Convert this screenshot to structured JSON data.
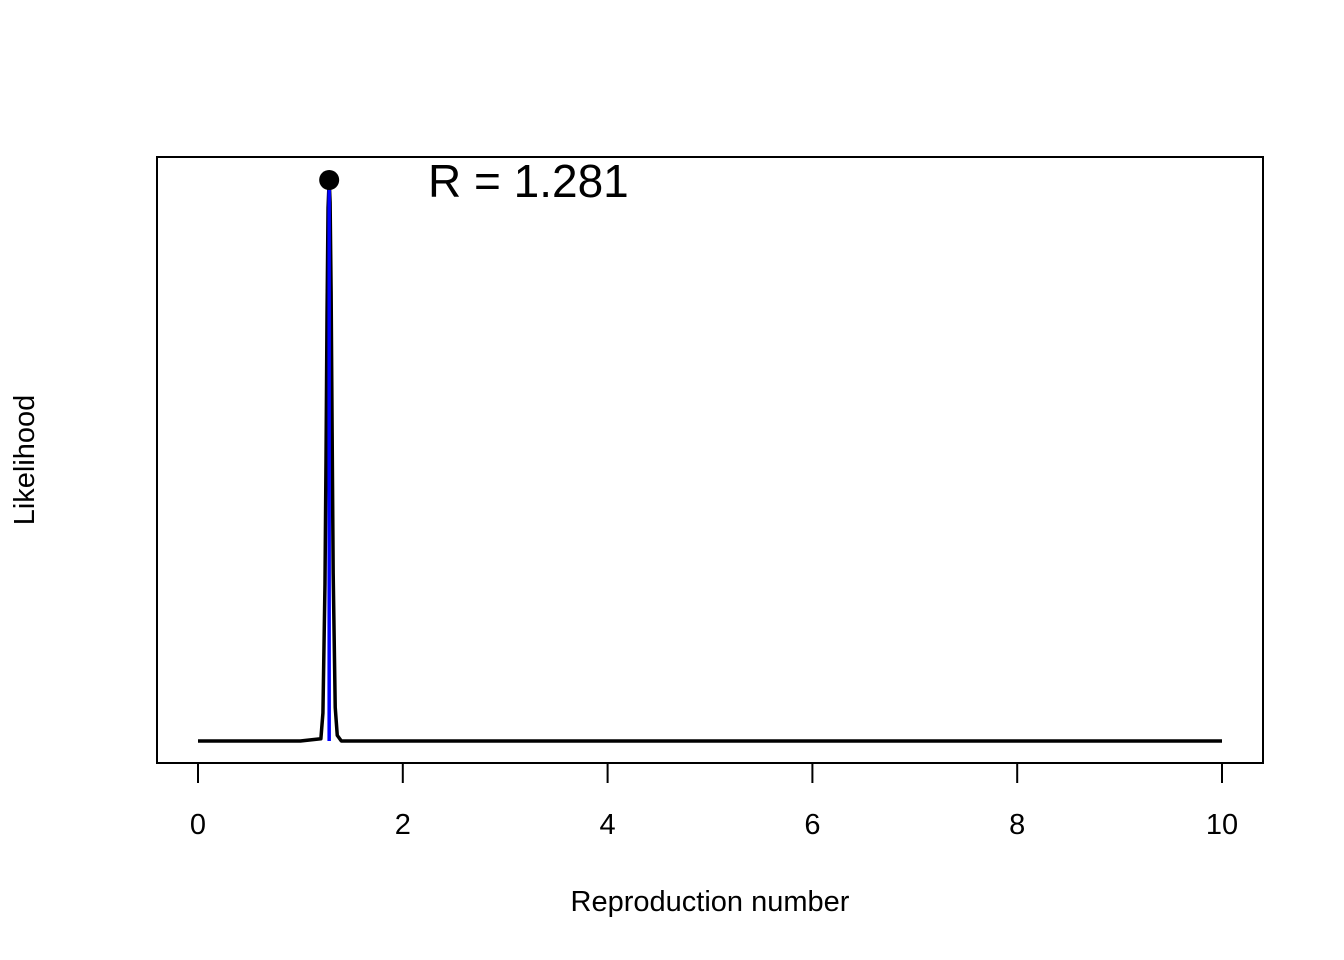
{
  "chart_data": {
    "type": "line",
    "title": "",
    "xlabel": "Reproduction number",
    "ylabel": "Likelihood",
    "xlim": [
      0,
      10
    ],
    "x_ticks": [
      0,
      2,
      4,
      6,
      8,
      10
    ],
    "y_ticks_shown": false,
    "grid": false,
    "legend": "none",
    "series": [
      {
        "color": "#000000",
        "x": [
          0,
          1.0,
          1.2,
          1.22,
          1.24,
          1.25,
          1.26,
          1.27,
          1.281,
          1.29,
          1.3,
          1.31,
          1.32,
          1.34,
          1.36,
          1.4,
          1.6,
          10
        ],
        "y": [
          0,
          0,
          0.004,
          0.05,
          0.28,
          0.5,
          0.76,
          0.95,
          1.0,
          0.96,
          0.8,
          0.55,
          0.3,
          0.06,
          0.01,
          0,
          0,
          0
        ]
      }
    ],
    "mle": {
      "x": 1.281,
      "line_color": "#0000ff",
      "point_color": "#000000",
      "label": "R = 1.281"
    }
  }
}
